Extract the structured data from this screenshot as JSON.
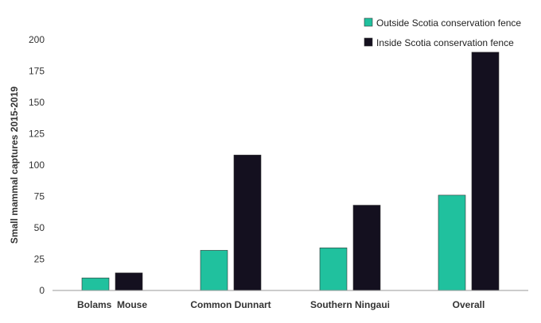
{
  "chart_data": {
    "type": "bar",
    "title": "",
    "xlabel": "",
    "ylabel": "Small mammal captures 2015-2019",
    "ylim": [
      0,
      200
    ],
    "yticks": [
      0,
      25,
      50,
      75,
      100,
      125,
      150,
      175,
      200
    ],
    "grid": false,
    "legend_position": "top-right",
    "categories": [
      "Bolams  Mouse",
      "Common Dunnart",
      "Southern Ningaui",
      "Overall"
    ],
    "series": [
      {
        "name": "Outside Scotia conservation fence",
        "color": "#20c19e",
        "values": [
          10,
          32,
          34,
          76
        ]
      },
      {
        "name": "Inside Scotia conservation fence",
        "color": "#14101f",
        "values": [
          14,
          108,
          68,
          190
        ]
      }
    ]
  }
}
